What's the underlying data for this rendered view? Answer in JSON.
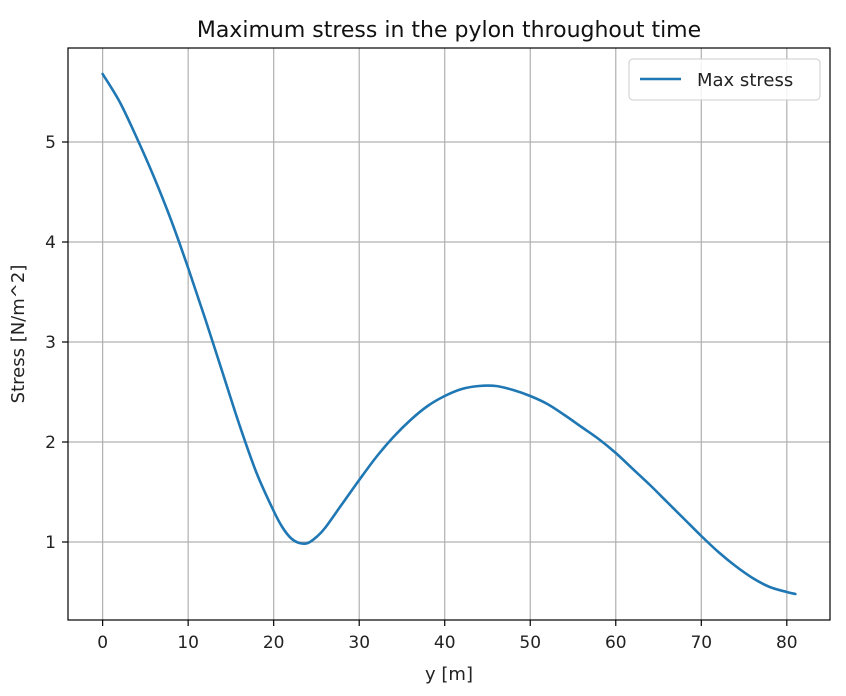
{
  "chart_data": {
    "type": "line",
    "title": "Maximum stress in the pylon throughout time",
    "xlabel": "y [m]",
    "ylabel": "Stress [N/m^2]",
    "xlim": [
      -4.05,
      85.05
    ],
    "ylim": [
      0.22,
      5.94
    ],
    "xticks": [
      0,
      10,
      20,
      30,
      40,
      50,
      60,
      70,
      80
    ],
    "yticks": [
      1,
      2,
      3,
      4,
      5
    ],
    "grid": true,
    "legend_position": "top-right",
    "series": [
      {
        "name": "Max stress",
        "color": "#1f77b4",
        "x": [
          0,
          2,
          4,
          6,
          8,
          10,
          12,
          14,
          16,
          18,
          20,
          21,
          22,
          23,
          24,
          25,
          26,
          28,
          30,
          32,
          34,
          36,
          38,
          40,
          42,
          44,
          46,
          48,
          50,
          52,
          54,
          56,
          58,
          60,
          62,
          64,
          66,
          68,
          70,
          72,
          74,
          76,
          78,
          80,
          81
        ],
        "y": [
          5.68,
          5.4,
          5.04,
          4.65,
          4.22,
          3.74,
          3.23,
          2.7,
          2.17,
          1.69,
          1.31,
          1.15,
          1.04,
          0.99,
          0.99,
          1.05,
          1.14,
          1.38,
          1.62,
          1.85,
          2.05,
          2.22,
          2.36,
          2.46,
          2.53,
          2.56,
          2.56,
          2.52,
          2.46,
          2.38,
          2.27,
          2.15,
          2.03,
          1.89,
          1.73,
          1.57,
          1.4,
          1.23,
          1.06,
          0.9,
          0.76,
          0.64,
          0.55,
          0.5,
          0.48
        ]
      }
    ]
  }
}
